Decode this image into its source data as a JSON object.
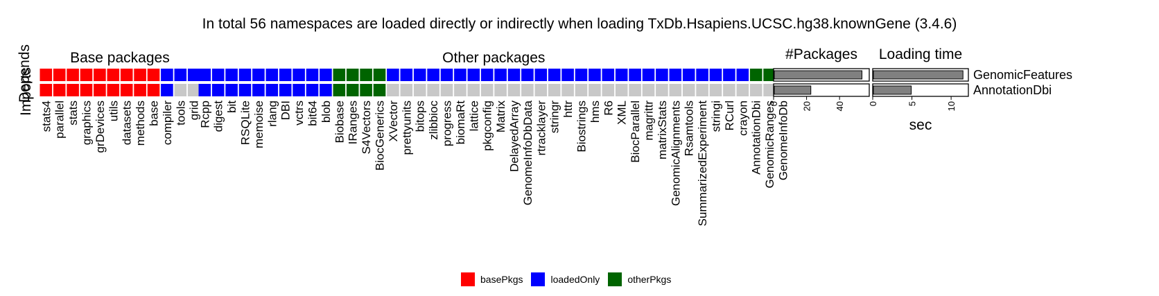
{
  "chart_data": {
    "type": "heatmap",
    "title": "In total 56 namespaces are loaded directly or indirectly when loading TxDb.Hsapiens.UCSC.hg38.knownGene (3.4.6)",
    "row_labels": [
      "Depends",
      "Imports"
    ],
    "groups": [
      {
        "name": "Base packages",
        "packages": [
          "stats4",
          "parallel",
          "stats",
          "graphics",
          "grDevices",
          "utils",
          "datasets",
          "methods",
          "base",
          "compiler",
          "tools",
          "grid"
        ]
      },
      {
        "name": "Other packages",
        "packages": [
          "Rcpp",
          "digest",
          "bit",
          "RSQLite",
          "memoise",
          "rlang",
          "DBI",
          "vctrs",
          "bit64",
          "blob",
          "Biobase",
          "IRanges",
          "S4Vectors",
          "BiocGenerics",
          "XVector",
          "prettyunits",
          "bitops",
          "zlibbioc",
          "progress",
          "biomaRt",
          "lattice",
          "pkgconfig",
          "Matrix",
          "DelayedArray",
          "GenomeInfoDbData",
          "rtracklayer",
          "stringr",
          "httr",
          "Biostrings",
          "hms",
          "R6",
          "XML",
          "BiocParallel",
          "magrittr",
          "matrixStats",
          "GenomicAlignments",
          "Rsamtools",
          "SummarizedExperiment",
          "stringi",
          "RCurl",
          "crayon",
          "AnnotationDbi",
          "GenomicRanges",
          "GenomeInfoDb"
        ]
      }
    ],
    "cells": {
      "Depends": [
        [
          "basePkgs",
          "basePkgs",
          "basePkgs",
          "basePkgs",
          "basePkgs",
          "basePkgs",
          "basePkgs",
          "basePkgs",
          "basePkgs",
          "loadedOnly",
          "loadedOnly",
          "loadedOnly"
        ],
        [
          "loadedOnly",
          "loadedOnly",
          "loadedOnly",
          "loadedOnly",
          "loadedOnly",
          "loadedOnly",
          "loadedOnly",
          "loadedOnly",
          "loadedOnly",
          "loadedOnly",
          "otherPkgs",
          "otherPkgs",
          "otherPkgs",
          "otherPkgs",
          "loadedOnly",
          "loadedOnly",
          "loadedOnly",
          "loadedOnly",
          "loadedOnly",
          "loadedOnly",
          "loadedOnly",
          "loadedOnly",
          "loadedOnly",
          "loadedOnly",
          "loadedOnly",
          "loadedOnly",
          "loadedOnly",
          "loadedOnly",
          "loadedOnly",
          "loadedOnly",
          "loadedOnly",
          "loadedOnly",
          "loadedOnly",
          "loadedOnly",
          "loadedOnly",
          "loadedOnly",
          "loadedOnly",
          "loadedOnly",
          "loadedOnly",
          "loadedOnly",
          "loadedOnly",
          "otherPkgs",
          "otherPkgs",
          "otherPkgs"
        ]
      ],
      "Imports": [
        [
          "basePkgs",
          "basePkgs",
          "basePkgs",
          "basePkgs",
          "basePkgs",
          "basePkgs",
          "basePkgs",
          "basePkgs",
          "basePkgs",
          "loadedOnly",
          "none",
          "none"
        ],
        [
          "loadedOnly",
          "loadedOnly",
          "loadedOnly",
          "loadedOnly",
          "loadedOnly",
          "loadedOnly",
          "loadedOnly",
          "loadedOnly",
          "loadedOnly",
          "loadedOnly",
          "otherPkgs",
          "otherPkgs",
          "otherPkgs",
          "otherPkgs",
          "none",
          "none",
          "none",
          "none",
          "none",
          "none",
          "none",
          "none",
          "none",
          "none",
          "none",
          "none",
          "none",
          "none",
          "none",
          "none",
          "none",
          "none",
          "none",
          "none",
          "none",
          "none",
          "none",
          "none",
          "none",
          "none",
          "none",
          "none",
          "none",
          "none"
        ]
      ]
    },
    "legend": [
      {
        "key": "basePkgs",
        "label": "basePkgs",
        "color": "#ff0000"
      },
      {
        "key": "loadedOnly",
        "label": "loadedOnly",
        "color": "#0000ff"
      },
      {
        "key": "otherPkgs",
        "label": "otherPkgs",
        "color": "#006400"
      }
    ],
    "none_color": "#c8c8c8",
    "side_rows": [
      "GenomicFeatures",
      "AnnotationDbi"
    ],
    "side_charts": [
      {
        "title": "#Packages",
        "type": "bar",
        "values": [
          54,
          23
        ],
        "xlim": [
          0,
          58
        ],
        "ticks": [
          0,
          20,
          40
        ],
        "xlabel": ""
      },
      {
        "title": "Loading time",
        "type": "bar",
        "values": [
          11.6,
          5.0
        ],
        "xlim": [
          0,
          12.2
        ],
        "ticks": [
          0,
          5,
          10
        ],
        "xlabel": "sec"
      }
    ]
  }
}
